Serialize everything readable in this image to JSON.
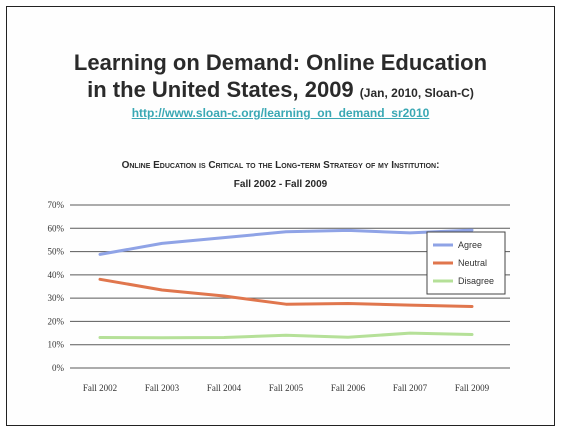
{
  "slide": {
    "title_line1": "Learning on Demand: Online Education",
    "title_line2": "in the United States, 2009",
    "title_suffix": "(Jan, 2010, Sloan-C)",
    "url": "http://www.sloan-c.org/learning_on_demand_sr2010"
  },
  "chart_data": {
    "type": "line",
    "title_line1": "Online Education is Critical to the Long-term Strategy of my Institution:",
    "title_line2": "Fall 2002 - Fall 2009",
    "categories": [
      "Fall 2002",
      "Fall 2003",
      "Fall 2004",
      "Fall 2005",
      "Fall 2006",
      "Fall 2007",
      "Fall 2009"
    ],
    "y_ticks": [
      "0%",
      "10%",
      "20%",
      "30%",
      "40%",
      "50%",
      "60%",
      "70%"
    ],
    "ylim": [
      0,
      70
    ],
    "grid": true,
    "legend_position": "right",
    "series": [
      {
        "name": "Agree",
        "color": "#8fa3e6",
        "values": [
          48.8,
          53.5,
          56.0,
          58.5,
          59.1,
          58.0,
          59.2
        ]
      },
      {
        "name": "Neutral",
        "color": "#e0764d",
        "values": [
          38.1,
          33.5,
          30.9,
          27.4,
          27.7,
          27.0,
          26.4
        ]
      },
      {
        "name": "Disagree",
        "color": "#b5e098",
        "values": [
          13.1,
          13.0,
          13.1,
          14.1,
          13.2,
          15.0,
          14.4
        ]
      }
    ]
  }
}
